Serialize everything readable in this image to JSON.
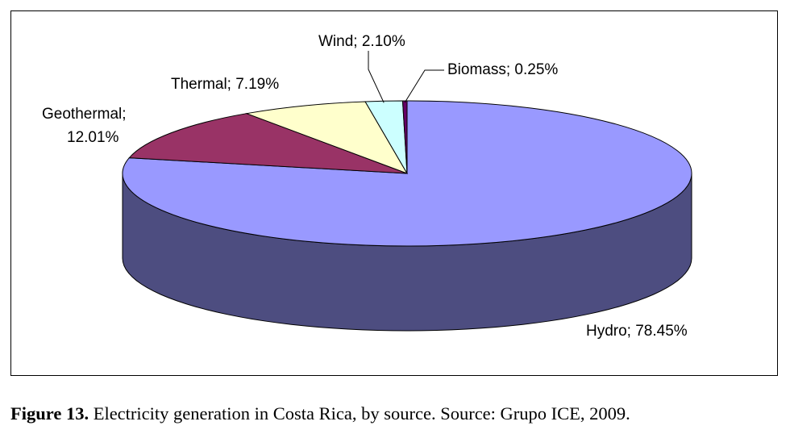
{
  "chart_data": {
    "type": "pie",
    "style": "3d",
    "slices": [
      {
        "label": "Hydro; 78.45%",
        "value": 78.45,
        "color": "#9999ff",
        "side_color": "#4d4d80"
      },
      {
        "label": "Geothermal; 12.01%",
        "value": 12.01,
        "color": "#993366",
        "side_color": "#4d1a33"
      },
      {
        "label": "Thermal; 7.19%",
        "value": 7.19,
        "color": "#ffffcc",
        "side_color": "#808066"
      },
      {
        "label": "Wind; 2.10%",
        "value": 2.1,
        "color": "#ccffff",
        "side_color": "#668080"
      },
      {
        "label": "Biomass; 0.25%",
        "value": 0.25,
        "color": "#660066",
        "side_color": "#330033"
      }
    ],
    "legend": "none"
  },
  "caption": {
    "figure": "Figure 13.",
    "text": " Electricity generation in Costa Rica, by source. Source: Grupo ICE, 2009."
  }
}
